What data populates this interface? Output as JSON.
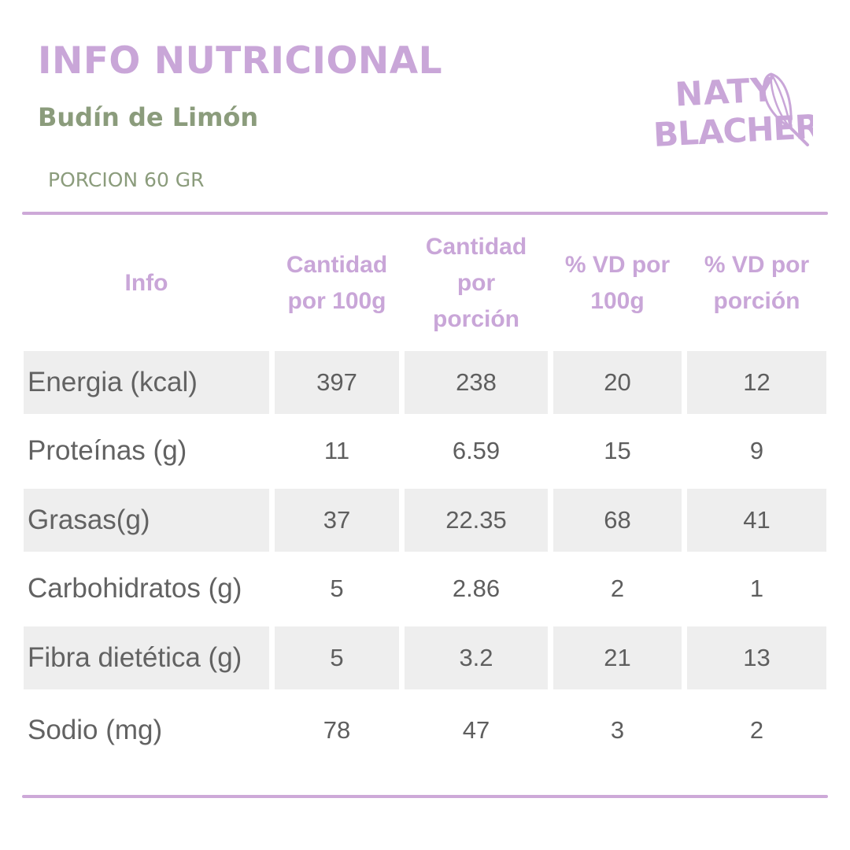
{
  "header": {
    "title": "INFO NUTRICIONAL",
    "subtitle": "Budín de Limón",
    "portion": "PORCION 60 GR"
  },
  "logo": {
    "text": "NATY BLACHER",
    "icon": "whisk-icon",
    "color": "#c9a6d8"
  },
  "table": {
    "columns": [
      "Info",
      "Cantidad por 100g",
      "Cantidad por porción",
      "% VD por 100g",
      "% VD por porción"
    ],
    "rows": [
      {
        "name": "Energia (kcal)",
        "per100": "397",
        "perPortion": "238",
        "vd100": "20",
        "vdPortion": "12"
      },
      {
        "name": "Proteínas (g)",
        "per100": "11",
        "perPortion": "6.59",
        "vd100": "15",
        "vdPortion": "9"
      },
      {
        "name": "Grasas(g)",
        "per100": "37",
        "perPortion": "22.35",
        "vd100": "68",
        "vdPortion": "41"
      },
      {
        "name": "Carbohidratos (g)",
        "per100": "5",
        "perPortion": "2.86",
        "vd100": "2",
        "vdPortion": "1"
      },
      {
        "name": "Fibra dietética (g)",
        "per100": "5",
        "perPortion": "3.2",
        "vd100": "21",
        "vdPortion": "13"
      },
      {
        "name": "Sodio (mg)",
        "per100": "78",
        "perPortion": "47",
        "vd100": "3",
        "vdPortion": "2"
      }
    ]
  },
  "colors": {
    "accent": "#c9a6d8",
    "rule": "#cda9d8",
    "subtitle": "#8b9c7c",
    "shade": "#eeeeee",
    "text": "#5e5e5e"
  }
}
